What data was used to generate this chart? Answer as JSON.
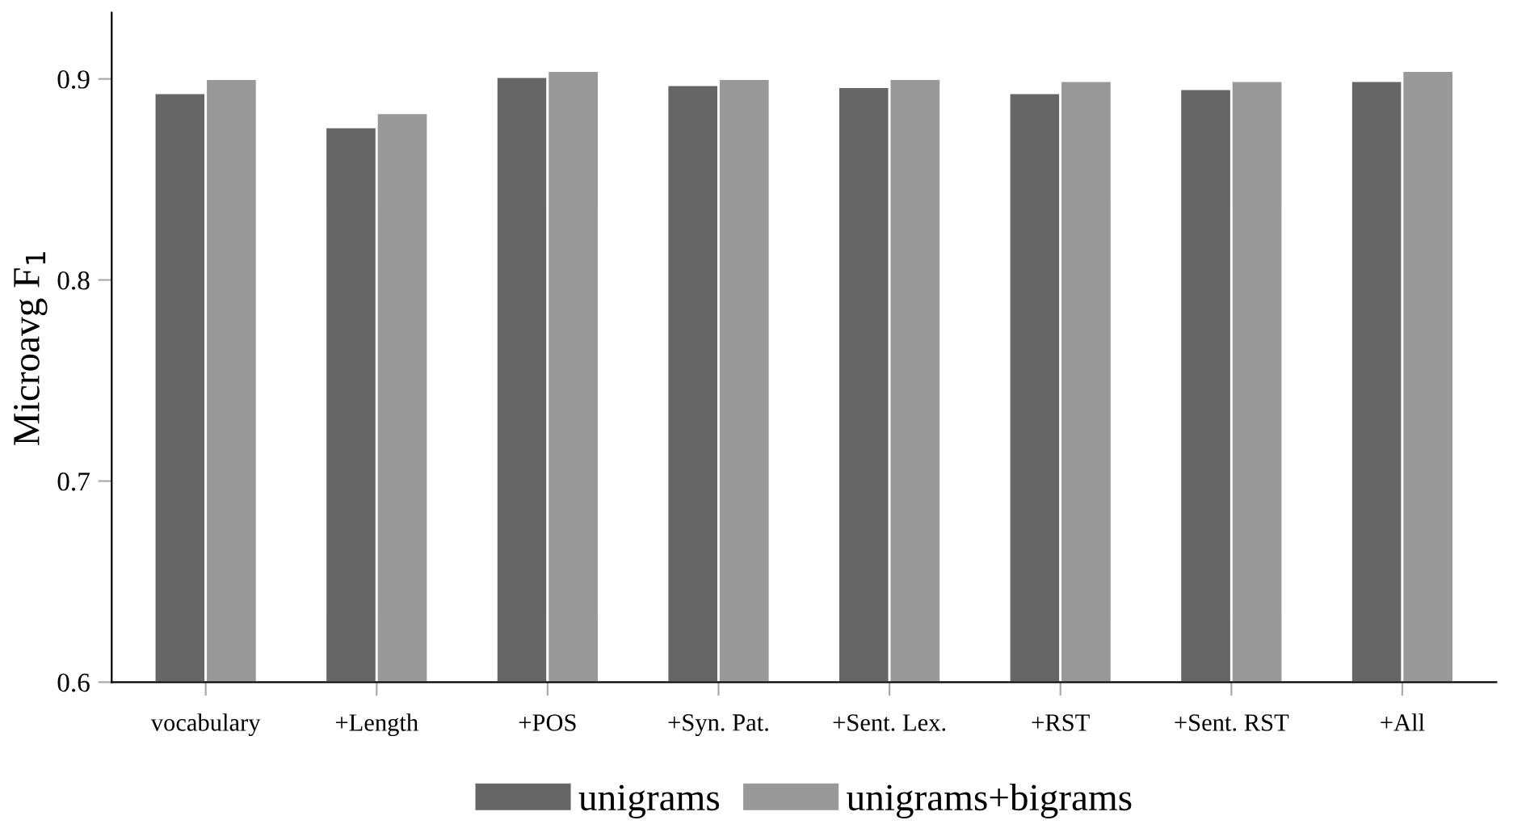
{
  "chart_data": {
    "type": "bar",
    "ylabel": "Microavg F$_{1}$",
    "categories": [
      "vocabulary",
      "+Length",
      "+POS",
      "+Syn. Pat.",
      "+Sent. Lex.",
      "+RST",
      "+Sent. RST",
      "+All"
    ],
    "series": [
      {
        "name": "unigrams",
        "color": "#666666",
        "values": [
          0.893,
          0.876,
          0.901,
          0.897,
          0.896,
          0.893,
          0.895,
          0.899
        ]
      },
      {
        "name": "unigrams+bigrams",
        "color": "#999999",
        "values": [
          0.9,
          0.883,
          0.904,
          0.9,
          0.9,
          0.899,
          0.899,
          0.904
        ]
      }
    ],
    "ylim": [
      0.6,
      0.933
    ],
    "yticks": [
      0.6,
      0.7,
      0.8,
      0.9
    ],
    "grid": false,
    "legend": "bottom"
  }
}
